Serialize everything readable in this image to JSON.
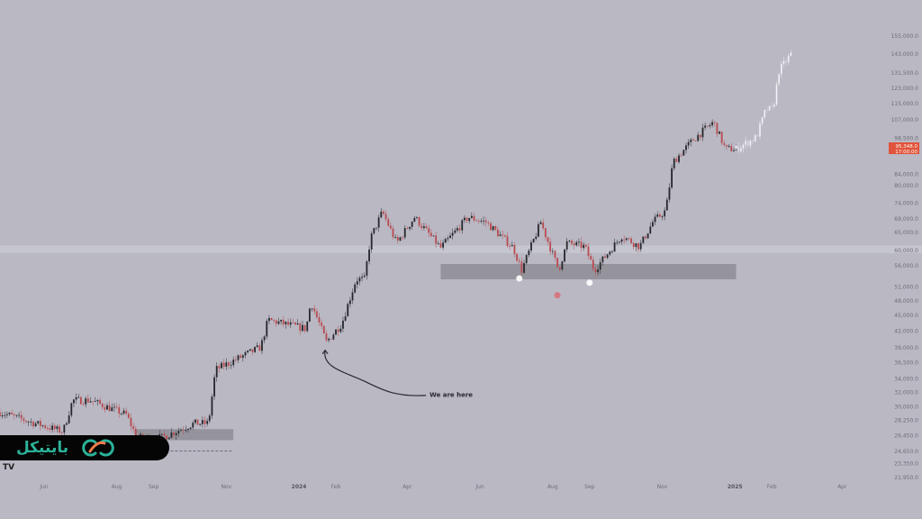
{
  "chart_data": {
    "type": "candlestick",
    "title": "",
    "y_scale": "log",
    "ylim": [
      21950,
      155000
    ],
    "xlim": [
      "2023-04-25",
      "2025-04-25"
    ],
    "grid": false,
    "y_ticks": [
      "155,000.0",
      "143,000.0",
      "131,500.0",
      "123,000.0",
      "115,000.0",
      "107,000.0",
      "98,500.0",
      "84,000.0",
      "80,000.0",
      "74,000.0",
      "69,000.0",
      "65,000.0",
      "60,000.0",
      "56,000.0",
      "51,000.0",
      "48,000.0",
      "45,000.0",
      "42,000.0",
      "39,000.0",
      "36,500.0",
      "34,000.0",
      "32,000.0",
      "30,000.0",
      "28,250.0",
      "26,450.0",
      "24,650.0",
      "23,350.0",
      "21,950.0"
    ],
    "y_tick_values": [
      155000,
      143000,
      131500,
      123000,
      115000,
      107000,
      98500,
      84000,
      80000,
      74000,
      69000,
      65000,
      60000,
      56000,
      51000,
      48000,
      45000,
      42000,
      39000,
      36500,
      34000,
      32000,
      30000,
      28250,
      26450,
      24650,
      23350,
      21950
    ],
    "x_ticks": [
      {
        "date": "2023-06-01",
        "label": "Jun"
      },
      {
        "date": "2023-08-01",
        "label": "Aug"
      },
      {
        "date": "2023-09-01",
        "label": "Sep"
      },
      {
        "date": "2023-11-01",
        "label": "Nov"
      },
      {
        "date": "2024-01-01",
        "label": "2024",
        "bold": true
      },
      {
        "date": "2024-02-01",
        "label": "Feb"
      },
      {
        "date": "2024-04-01",
        "label": "Apr"
      },
      {
        "date": "2024-06-01",
        "label": "Jun"
      },
      {
        "date": "2024-08-01",
        "label": "Aug"
      },
      {
        "date": "2024-09-01",
        "label": "Sep"
      },
      {
        "date": "2024-11-01",
        "label": "Nov"
      },
      {
        "date": "2025-01-01",
        "label": "2025",
        "bold": true
      },
      {
        "date": "2025-02-01",
        "label": "Feb"
      },
      {
        "date": "2025-04-01",
        "label": "Apr"
      }
    ],
    "price_path": [
      [
        "2023-04-25",
        29300
      ],
      [
        "2023-05-18",
        28200
      ],
      [
        "2023-06-17",
        26900
      ],
      [
        "2023-06-25",
        30900
      ],
      [
        "2023-07-10",
        30900
      ],
      [
        "2023-08-09",
        29000
      ],
      [
        "2023-08-18",
        26200
      ],
      [
        "2023-09-08",
        26200
      ],
      [
        "2023-10-05",
        27900
      ],
      [
        "2023-10-17",
        27900
      ],
      [
        "2023-10-23",
        35400
      ],
      [
        "2023-11-30",
        39100
      ],
      [
        "2023-12-06",
        44100
      ],
      [
        "2024-01-07",
        42400
      ],
      [
        "2024-01-11",
        47800
      ],
      [
        "2024-01-24",
        40000
      ],
      [
        "2024-02-06",
        43400
      ],
      [
        "2024-02-18",
        52800
      ],
      [
        "2024-02-25",
        52800
      ],
      [
        "2024-03-01",
        63200
      ],
      [
        "2024-03-11",
        71200
      ],
      [
        "2024-03-23",
        62000
      ],
      [
        "2024-04-07",
        69500
      ],
      [
        "2024-04-29",
        60700
      ],
      [
        "2024-05-22",
        69500
      ],
      [
        "2024-06-06",
        68000
      ],
      [
        "2024-06-29",
        60700
      ],
      [
        "2024-07-06",
        55000
      ],
      [
        "2024-07-22",
        68000
      ],
      [
        "2024-08-06",
        55000
      ],
      [
        "2024-08-13",
        62000
      ],
      [
        "2024-08-28",
        61000
      ],
      [
        "2024-09-05",
        55000
      ],
      [
        "2024-09-28",
        64000
      ],
      [
        "2024-10-13",
        61000
      ],
      [
        "2024-10-24",
        68000
      ],
      [
        "2024-11-04",
        71600
      ],
      [
        "2024-11-10",
        88700
      ],
      [
        "2024-11-27",
        98000
      ],
      [
        "2024-12-14",
        106000
      ],
      [
        "2024-12-24",
        94000
      ],
      [
        "2025-01-02",
        94000
      ]
    ],
    "projection_path": [
      [
        "2025-01-02",
        94000
      ],
      [
        "2025-01-19",
        99000
      ],
      [
        "2025-01-27",
        112000
      ],
      [
        "2025-02-02",
        112000
      ],
      [
        "2025-02-07",
        133000
      ],
      [
        "2025-02-17",
        143000
      ]
    ],
    "zones": [
      {
        "from": "2024-04-29",
        "to": "2025-01-02",
        "high": 56500,
        "low": 52800
      },
      {
        "from": "2023-08-16",
        "to": "2023-11-07",
        "high": 27200,
        "low": 25900
      }
    ],
    "dashed_level": {
      "from": "2023-08-16",
      "to": "2023-11-07",
      "price": 24700
    },
    "highlight_band": {
      "high": 61300,
      "low": 59300
    },
    "markers": [
      {
        "date": "2024-08-05",
        "price": 49200,
        "color": "#d9707a"
      },
      {
        "date": "2024-07-04",
        "price": 53000,
        "color": "#ffffff"
      },
      {
        "date": "2024-09-01",
        "price": 52000,
        "color": "#ffffff"
      }
    ],
    "annotation": {
      "text": "We are here",
      "target_date": "2024-01-23",
      "target_price": 39500
    },
    "current_price": {
      "price_label": "95,348.0",
      "time_label": "17:00:00",
      "color": "#e0533c"
    },
    "colors": {
      "up": "#26262c",
      "down": "#b84a4f",
      "projection": "#f2f2f6",
      "zone": "#8e8d96",
      "background": "#b9b8c3"
    }
  },
  "brand": {
    "name": "بایتیکل",
    "accent": "#2bb39a",
    "secondary": "#f07a4a"
  },
  "watermark": {
    "logo": "TV"
  }
}
